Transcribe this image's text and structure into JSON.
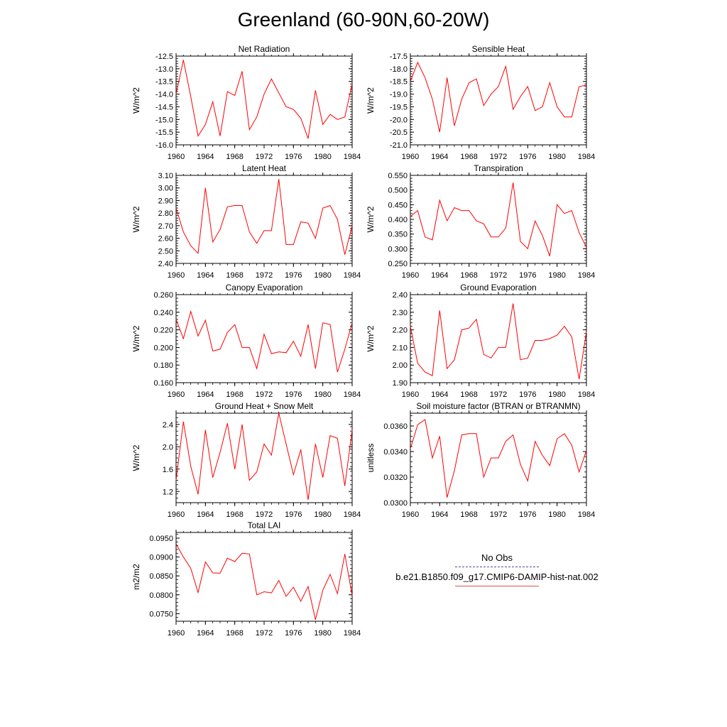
{
  "page": {
    "title": "Greenland (60-90N,60-20W)"
  },
  "legend": {
    "items": [
      {
        "label": "No Obs",
        "style": "dashed",
        "color": "#4a4aa8"
      },
      {
        "label": "b.e21.B1850.f09_g17.CMIP6-DAMIP-hist-nat.002",
        "style": "solid",
        "color": "#e05050"
      }
    ]
  },
  "chart_data": [
    {
      "type": "line",
      "title": "Net Radiation",
      "ylabel": "W/m^2",
      "ylim": [
        -16.0,
        -12.5
      ],
      "yticks": [
        -16.0,
        -15.5,
        -15.0,
        -14.5,
        -14.0,
        -13.5,
        -13.0,
        -12.5
      ],
      "ytick_labels": [
        "-16.0",
        "-15.5",
        "-15.0",
        "-14.5",
        "-14.0",
        "-13.5",
        "-13.0",
        "-12.5"
      ],
      "xlim": [
        1960,
        1984
      ],
      "xticks": [
        1960,
        1964,
        1968,
        1972,
        1976,
        1980,
        1984
      ],
      "x": [
        1960,
        1961,
        1962,
        1963,
        1964,
        1965,
        1966,
        1967,
        1968,
        1969,
        1970,
        1971,
        1972,
        1973,
        1974,
        1975,
        1976,
        1977,
        1978,
        1979,
        1980,
        1981,
        1982,
        1983,
        1984
      ],
      "series": [
        {
          "color": "#ff0000",
          "values": [
            -14.0,
            -12.65,
            -14.1,
            -15.65,
            -15.2,
            -14.3,
            -15.65,
            -13.9,
            -14.05,
            -13.1,
            -15.4,
            -14.9,
            -14.0,
            -13.4,
            -13.95,
            -14.5,
            -14.6,
            -14.95,
            -15.75,
            -13.85,
            -15.2,
            -14.8,
            -15.0,
            -14.9,
            -13.6
          ]
        }
      ]
    },
    {
      "type": "line",
      "title": "Sensible Heat",
      "ylabel": "W/m^2",
      "ylim": [
        -21.0,
        -17.5
      ],
      "yticks": [
        -21.0,
        -20.5,
        -20.0,
        -19.5,
        -19.0,
        -18.5,
        -18.0,
        -17.5
      ],
      "ytick_labels": [
        "-21.0",
        "-20.5",
        "-20.0",
        "-19.5",
        "-19.0",
        "-18.5",
        "-18.0",
        "-17.5"
      ],
      "xlim": [
        1960,
        1984
      ],
      "xticks": [
        1960,
        1964,
        1968,
        1972,
        1976,
        1980,
        1984
      ],
      "x": [
        1960,
        1961,
        1962,
        1963,
        1964,
        1965,
        1966,
        1967,
        1968,
        1969,
        1970,
        1971,
        1972,
        1973,
        1974,
        1975,
        1976,
        1977,
        1978,
        1979,
        1980,
        1981,
        1982,
        1983,
        1984
      ],
      "series": [
        {
          "color": "#ff0000",
          "values": [
            -18.5,
            -17.75,
            -18.35,
            -19.2,
            -20.5,
            -18.35,
            -20.25,
            -19.2,
            -18.55,
            -18.4,
            -19.45,
            -19.0,
            -18.7,
            -17.9,
            -19.6,
            -19.1,
            -18.7,
            -19.65,
            -19.5,
            -18.55,
            -19.5,
            -19.9,
            -19.9,
            -18.7,
            -18.65
          ]
        }
      ]
    },
    {
      "type": "line",
      "title": "Latent Heat",
      "ylabel": "W/m^2",
      "ylim": [
        2.4,
        3.1
      ],
      "yticks": [
        2.4,
        2.5,
        2.6,
        2.7,
        2.8,
        2.9,
        3.0,
        3.1
      ],
      "ytick_labels": [
        "2.40",
        "2.50",
        "2.60",
        "2.70",
        "2.80",
        "2.90",
        "3.00",
        "3.10"
      ],
      "xlim": [
        1960,
        1984
      ],
      "xticks": [
        1960,
        1964,
        1968,
        1972,
        1976,
        1980,
        1984
      ],
      "x": [
        1960,
        1961,
        1962,
        1963,
        1964,
        1965,
        1966,
        1967,
        1968,
        1969,
        1970,
        1971,
        1972,
        1973,
        1974,
        1975,
        1976,
        1977,
        1978,
        1979,
        1980,
        1981,
        1982,
        1983,
        1984
      ],
      "series": [
        {
          "color": "#ff0000",
          "values": [
            2.84,
            2.65,
            2.54,
            2.48,
            3.0,
            2.57,
            2.67,
            2.85,
            2.86,
            2.86,
            2.65,
            2.56,
            2.66,
            2.66,
            3.07,
            2.55,
            2.55,
            2.73,
            2.72,
            2.6,
            2.84,
            2.86,
            2.75,
            2.47,
            2.7
          ]
        }
      ]
    },
    {
      "type": "line",
      "title": "Transpiration",
      "ylabel": "W/m^2",
      "ylim": [
        0.25,
        0.55
      ],
      "yticks": [
        0.25,
        0.3,
        0.35,
        0.4,
        0.45,
        0.5,
        0.55
      ],
      "ytick_labels": [
        "0.250",
        "0.300",
        "0.350",
        "0.400",
        "0.450",
        "0.500",
        "0.550"
      ],
      "xlim": [
        1960,
        1984
      ],
      "xticks": [
        1960,
        1964,
        1968,
        1972,
        1976,
        1980,
        1984
      ],
      "x": [
        1960,
        1961,
        1962,
        1963,
        1964,
        1965,
        1966,
        1967,
        1968,
        1969,
        1970,
        1971,
        1972,
        1973,
        1974,
        1975,
        1976,
        1977,
        1978,
        1979,
        1980,
        1981,
        1982,
        1983,
        1984
      ],
      "series": [
        {
          "color": "#ff0000",
          "values": [
            0.41,
            0.43,
            0.34,
            0.33,
            0.465,
            0.395,
            0.44,
            0.43,
            0.43,
            0.395,
            0.385,
            0.34,
            0.34,
            0.37,
            0.525,
            0.325,
            0.3,
            0.395,
            0.345,
            0.275,
            0.45,
            0.42,
            0.43,
            0.355,
            0.305
          ]
        }
      ]
    },
    {
      "type": "line",
      "title": "Canopy Evaporation",
      "ylabel": "W/m^2",
      "ylim": [
        0.16,
        0.26
      ],
      "yticks": [
        0.16,
        0.18,
        0.2,
        0.22,
        0.24,
        0.26
      ],
      "ytick_labels": [
        "0.160",
        "0.180",
        "0.200",
        "0.220",
        "0.240",
        "0.260"
      ],
      "xlim": [
        1960,
        1984
      ],
      "xticks": [
        1960,
        1964,
        1968,
        1972,
        1976,
        1980,
        1984
      ],
      "x": [
        1960,
        1961,
        1962,
        1963,
        1964,
        1965,
        1966,
        1967,
        1968,
        1969,
        1970,
        1971,
        1972,
        1973,
        1974,
        1975,
        1976,
        1977,
        1978,
        1979,
        1980,
        1981,
        1982,
        1983,
        1984
      ],
      "series": [
        {
          "color": "#ff0000",
          "values": [
            0.232,
            0.21,
            0.241,
            0.213,
            0.231,
            0.196,
            0.198,
            0.217,
            0.226,
            0.2,
            0.2,
            0.176,
            0.215,
            0.193,
            0.195,
            0.194,
            0.207,
            0.19,
            0.226,
            0.176,
            0.228,
            0.226,
            0.172,
            0.198,
            0.228
          ]
        }
      ]
    },
    {
      "type": "line",
      "title": "Ground Evaporation",
      "ylabel": "W/m^2",
      "ylim": [
        1.9,
        2.4
      ],
      "yticks": [
        1.9,
        2.0,
        2.1,
        2.2,
        2.3,
        2.4
      ],
      "ytick_labels": [
        "1.90",
        "2.00",
        "2.10",
        "2.20",
        "2.30",
        "2.40"
      ],
      "xlim": [
        1960,
        1984
      ],
      "xticks": [
        1960,
        1964,
        1968,
        1972,
        1976,
        1980,
        1984
      ],
      "x": [
        1960,
        1961,
        1962,
        1963,
        1964,
        1965,
        1966,
        1967,
        1968,
        1969,
        1970,
        1971,
        1972,
        1973,
        1974,
        1975,
        1976,
        1977,
        1978,
        1979,
        1980,
        1981,
        1982,
        1983,
        1984
      ],
      "series": [
        {
          "color": "#ff0000",
          "values": [
            2.22,
            2.01,
            1.96,
            1.94,
            2.31,
            1.98,
            2.03,
            2.2,
            2.21,
            2.26,
            2.06,
            2.04,
            2.1,
            2.1,
            2.35,
            2.03,
            2.04,
            2.14,
            2.14,
            2.15,
            2.17,
            2.22,
            2.16,
            1.92,
            2.19
          ]
        }
      ]
    },
    {
      "type": "line",
      "title": "Ground Heat + Snow Melt",
      "ylabel": "W/m^2",
      "ylim": [
        1.0,
        2.6
      ],
      "yticks": [
        1.2,
        1.6,
        2.0,
        2.4
      ],
      "ytick_labels": [
        "1.2",
        "1.6",
        "2.0",
        "2.4"
      ],
      "xlim": [
        1960,
        1984
      ],
      "xticks": [
        1960,
        1964,
        1968,
        1972,
        1976,
        1980,
        1984
      ],
      "x": [
        1960,
        1961,
        1962,
        1963,
        1964,
        1965,
        1966,
        1967,
        1968,
        1969,
        1970,
        1971,
        1972,
        1973,
        1974,
        1975,
        1976,
        1977,
        1978,
        1979,
        1980,
        1981,
        1982,
        1983,
        1984
      ],
      "series": [
        {
          "color": "#ff0000",
          "values": [
            1.4,
            2.45,
            1.65,
            1.15,
            2.3,
            1.45,
            1.9,
            2.42,
            1.6,
            2.4,
            1.4,
            1.55,
            2.05,
            1.85,
            2.6,
            2.05,
            1.5,
            1.95,
            1.05,
            2.05,
            1.45,
            2.2,
            2.15,
            1.3,
            2.3
          ]
        }
      ]
    },
    {
      "type": "line",
      "title": "Soil moisture factor (BTRAN or BTRANMN)",
      "ylabel": "unitless",
      "ylim": [
        0.03,
        0.037
      ],
      "yticks": [
        0.03,
        0.032,
        0.034,
        0.036
      ],
      "ytick_labels": [
        "0.0300",
        "0.0320",
        "0.0340",
        "0.0360"
      ],
      "xlim": [
        1960,
        1984
      ],
      "xticks": [
        1960,
        1964,
        1968,
        1972,
        1976,
        1980,
        1984
      ],
      "x": [
        1960,
        1961,
        1962,
        1963,
        1964,
        1965,
        1966,
        1967,
        1968,
        1969,
        1970,
        1971,
        1972,
        1973,
        1974,
        1975,
        1976,
        1977,
        1978,
        1979,
        1980,
        1981,
        1982,
        1983,
        1984
      ],
      "series": [
        {
          "color": "#ff0000",
          "values": [
            0.0342,
            0.0361,
            0.0365,
            0.0335,
            0.0352,
            0.0304,
            0.0325,
            0.0353,
            0.0354,
            0.0354,
            0.032,
            0.0335,
            0.0335,
            0.0348,
            0.0353,
            0.033,
            0.0317,
            0.0348,
            0.0337,
            0.0329,
            0.035,
            0.0354,
            0.0345,
            0.0324,
            0.0341
          ]
        }
      ]
    },
    {
      "type": "line",
      "title": "Total LAI",
      "ylabel": "m2/m2",
      "ylim": [
        0.073,
        0.0965
      ],
      "yticks": [
        0.075,
        0.08,
        0.085,
        0.09,
        0.095
      ],
      "ytick_labels": [
        "0.0750",
        "0.0800",
        "0.0850",
        "0.0900",
        "0.0950"
      ],
      "xlim": [
        1960,
        1984
      ],
      "xticks": [
        1960,
        1964,
        1968,
        1972,
        1976,
        1980,
        1984
      ],
      "x": [
        1960,
        1961,
        1962,
        1963,
        1964,
        1965,
        1966,
        1967,
        1968,
        1969,
        1970,
        1971,
        1972,
        1973,
        1974,
        1975,
        1976,
        1977,
        1978,
        1979,
        1980,
        1981,
        1982,
        1983,
        1984
      ],
      "series": [
        {
          "color": "#ff0000",
          "values": [
            0.0935,
            0.09,
            0.087,
            0.0806,
            0.0887,
            0.0858,
            0.0857,
            0.0897,
            0.0888,
            0.091,
            0.0908,
            0.08,
            0.0808,
            0.0805,
            0.0838,
            0.0796,
            0.082,
            0.0783,
            0.0822,
            0.0734,
            0.0812,
            0.0854,
            0.0803,
            0.0908,
            0.0798
          ]
        }
      ]
    }
  ]
}
